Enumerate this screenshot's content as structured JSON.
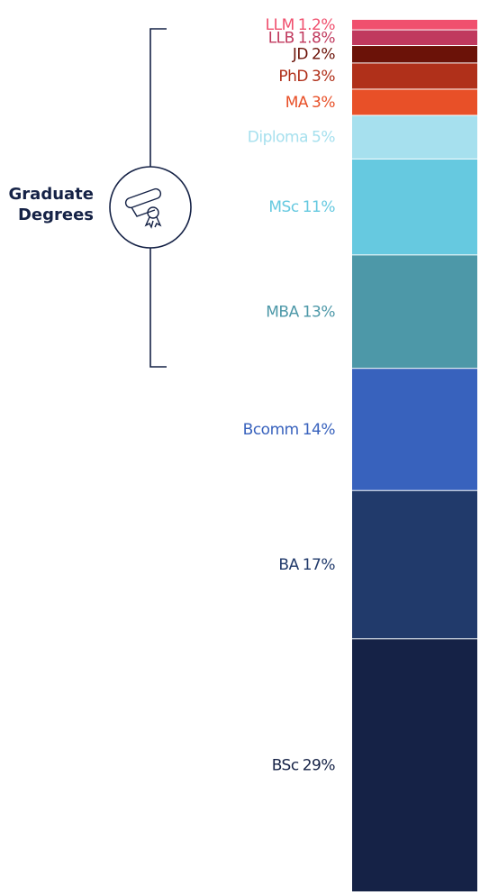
{
  "chart_data": {
    "type": "stacked-bar",
    "annotation": "Graduate Degrees",
    "categories": [
      "LLM",
      "LLB",
      "JD",
      "PhD",
      "MA",
      "Diploma",
      "MSc",
      "MBA",
      "Bcomm",
      "BA",
      "BSc"
    ],
    "values": [
      1.2,
      1.8,
      2,
      3,
      3,
      5,
      11,
      13,
      14,
      17,
      29
    ],
    "value_labels": [
      "1.2%",
      "1.8%",
      "2%",
      "3%",
      "3%",
      "5%",
      "11%",
      "13%",
      "14%",
      "17%",
      "29%"
    ],
    "colors": [
      "#f0506e",
      "#c0395e",
      "#6b1208",
      "#b0301a",
      "#e85028",
      "#a6e0ee",
      "#66c9e0",
      "#4d98a8",
      "#3862bd",
      "#213a6b",
      "#152246"
    ]
  }
}
